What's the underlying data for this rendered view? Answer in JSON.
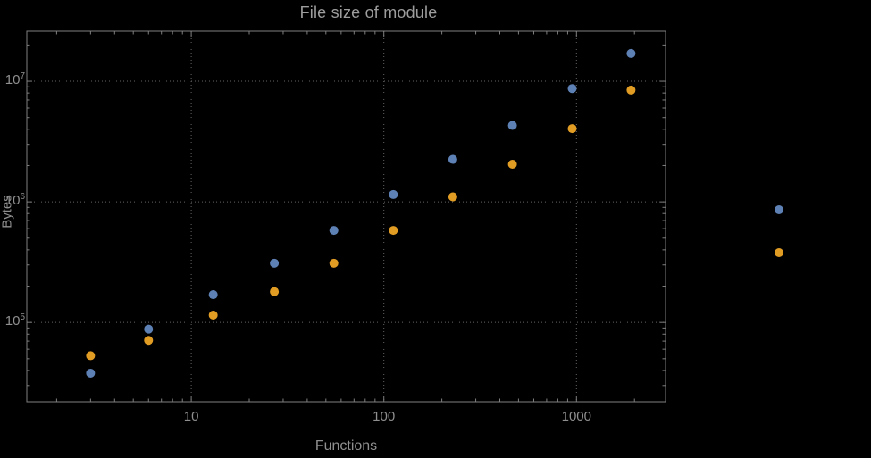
{
  "chart_data": {
    "type": "scatter",
    "title": "File size of module",
    "xlabel": "Functions",
    "ylabel": "Bytes",
    "x_scale": "log",
    "y_scale": "log",
    "xlim": [
      1.4,
      2900
    ],
    "ylim": [
      22000,
      26000000
    ],
    "grid": "dotted gridlines at decade ticks, framed plot",
    "x_major_ticks": [
      10,
      100,
      1000
    ],
    "x_major_tick_labels": [
      "10",
      "100",
      "1000"
    ],
    "y_major_ticks": [
      100000,
      1000000,
      10000000
    ],
    "y_major_tick_labels": [
      "10^5",
      "10^6",
      "10^7"
    ],
    "series": [
      {
        "name": "series-blue",
        "color": "#5e81b5",
        "x": [
          3,
          6,
          13,
          27,
          55,
          112,
          228,
          465,
          950,
          1920
        ],
        "y": [
          38000,
          88000,
          170000,
          310000,
          580000,
          1150000,
          2250000,
          4300000,
          8700000,
          17000000
        ]
      },
      {
        "name": "series-orange",
        "color": "#e19c24",
        "x": [
          3,
          6,
          13,
          27,
          55,
          112,
          228,
          465,
          950,
          1920
        ],
        "y": [
          53000,
          71000,
          115000,
          180000,
          310000,
          580000,
          1100000,
          2050000,
          4050000,
          8450000
        ]
      }
    ],
    "legend": {
      "position": "right-outside-frame",
      "entries": [
        {
          "marker_color": "#5e81b5",
          "label": ""
        },
        {
          "marker_color": "#e19c24",
          "label": ""
        }
      ]
    },
    "style": {
      "background_color": "#000000",
      "title_color": "#9d9d9d",
      "axis_label_color": "#8f8f8f",
      "tick_label_color": "#8f8f8f",
      "frame_color": "#7f7f7f",
      "grid_color": "#646464",
      "marker_diameter_px": 10
    }
  }
}
